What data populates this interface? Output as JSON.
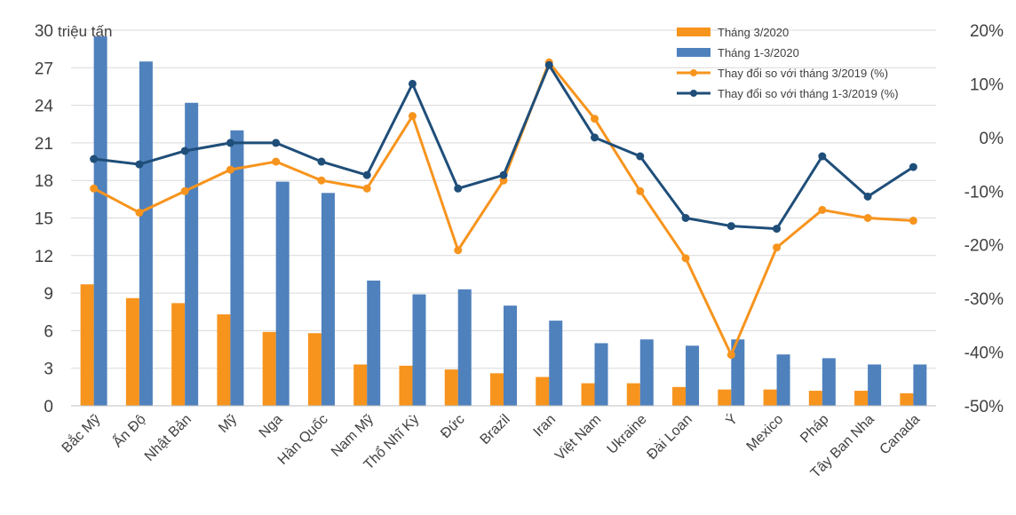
{
  "chart_data": {
    "type": "bar",
    "left_axis_unit_label": "triệu tấn",
    "categories": [
      "Bắc Mỹ",
      "Ấn Độ",
      "Nhật Bản",
      "Mỹ",
      "Nga",
      "Hàn Quốc",
      "Nam Mỹ",
      "Thổ Nhĩ Kỳ",
      "Đức",
      "Brazil",
      "Iran",
      "Việt Nam",
      "Ukraine",
      "Đài Loan",
      "Ý",
      "Mexico",
      "Pháp",
      "Tây Ban Nha",
      "Canada"
    ],
    "series": [
      {
        "name": "Tháng 3/2020",
        "type": "bar",
        "axis": "left",
        "color": "#F7941D",
        "values": [
          9.7,
          8.6,
          8.2,
          7.3,
          5.9,
          5.8,
          3.3,
          3.2,
          2.9,
          2.6,
          2.3,
          1.8,
          1.8,
          1.5,
          1.3,
          1.3,
          1.2,
          1.2,
          1.0
        ]
      },
      {
        "name": "Tháng 1-3/2020",
        "type": "bar",
        "axis": "left",
        "color": "#4F81BD",
        "values": [
          29.5,
          27.5,
          24.2,
          22.0,
          17.9,
          17.0,
          10.0,
          8.9,
          9.3,
          8.0,
          6.8,
          5.0,
          5.3,
          4.8,
          5.3,
          4.1,
          3.8,
          3.3,
          3.3
        ]
      },
      {
        "name": "Thay đổi so với tháng 3/2019 (%)",
        "type": "line",
        "axis": "right",
        "color": "#F7941D",
        "values": [
          -9.5,
          -14.0,
          -10.0,
          -6.0,
          -4.5,
          -8.0,
          -9.5,
          4.0,
          -21.0,
          -8.0,
          14.0,
          3.5,
          -10.0,
          -22.5,
          -40.5,
          -20.5,
          -13.5,
          -15.0,
          -15.5
        ]
      },
      {
        "name": "Thay đổi so với tháng 1-3/2019 (%)",
        "type": "line",
        "axis": "right",
        "color": "#1F4E79",
        "values": [
          -4.0,
          -5.0,
          -2.5,
          -1.0,
          -1.0,
          -4.5,
          -7.0,
          10.0,
          -9.5,
          -7.0,
          13.5,
          0.0,
          -3.5,
          -15.0,
          -16.5,
          -17.0,
          -3.5,
          -11.0,
          -5.5
        ]
      }
    ],
    "y_left": {
      "min": 0,
      "max": 30,
      "ticks": [
        0,
        3,
        6,
        9,
        12,
        15,
        18,
        21,
        24,
        27,
        30
      ]
    },
    "y_right": {
      "min": -50,
      "max": 20,
      "ticks": [
        -50,
        -40,
        -30,
        -20,
        -10,
        0,
        10,
        20
      ],
      "tick_labels": [
        "-50%",
        "-40%",
        "-30%",
        "-20%",
        "-10%",
        "0%",
        "10%",
        "20%"
      ]
    },
    "grid": true,
    "legend_position": "top-right"
  }
}
